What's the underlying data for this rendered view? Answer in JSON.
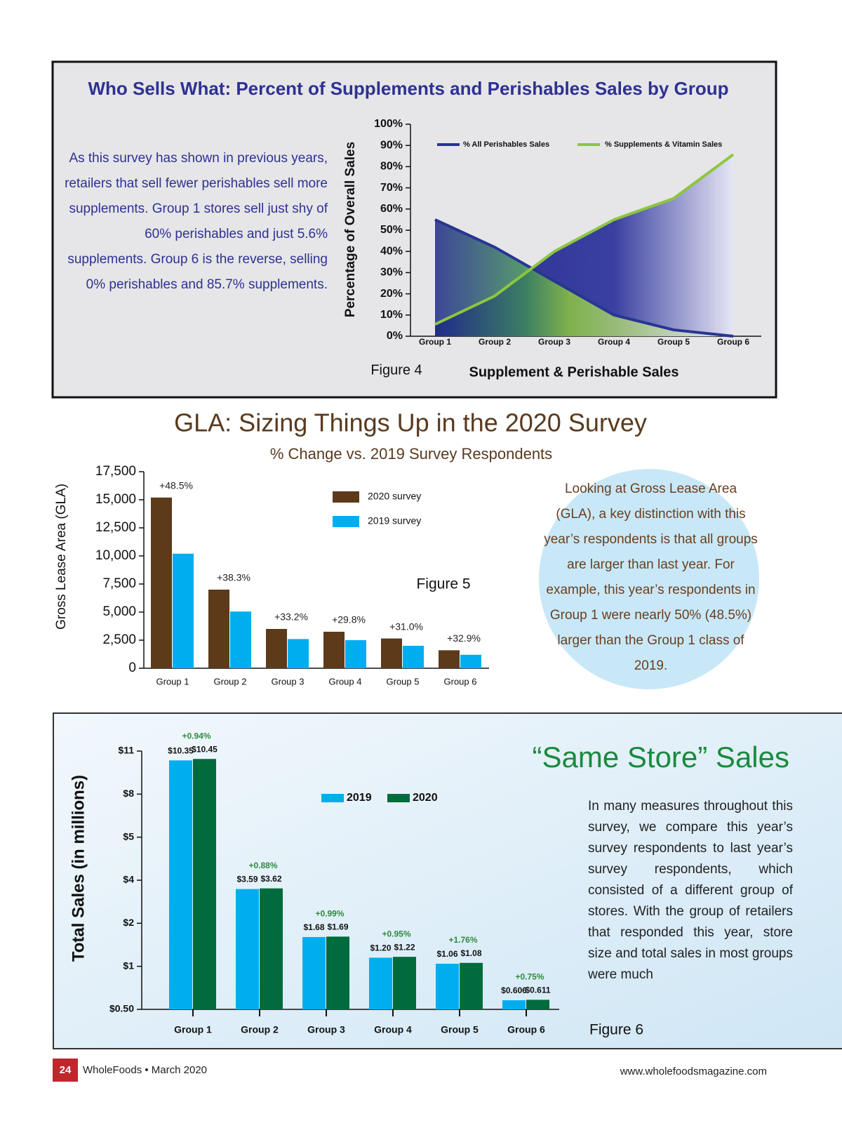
{
  "chart_data": [
    {
      "type": "area",
      "title": "Who Sells What: Percent of Supplements and Perishables Sales by Group",
      "note": "As this survey has shown in previous years, retailers that sell fewer perishables sell more supplements. Group 1 stores sell just shy of 60% perishables and just 5.6% supplements. Group 6 is the reverse, selling 0% perishables and 85.7% supplements.",
      "figure": "Figure 4",
      "xlabel": "Supplement & Perishable Sales",
      "ylabel": "Percentage of Overall Sales",
      "categories": [
        "Group 1",
        "Group 2",
        "Group 3",
        "Group 4",
        "Group 5",
        "Group 6"
      ],
      "series": [
        {
          "name": "% All Perishables Sales",
          "color": "#283593",
          "values": [
            55,
            42,
            26,
            10,
            3,
            0
          ]
        },
        {
          "name": "% Supplements & Vitamin Sales",
          "color": "#8dc63f",
          "values": [
            5.6,
            19,
            40,
            55,
            65,
            85.7
          ]
        }
      ],
      "ylim": [
        0,
        100
      ],
      "yticks": [
        {
          "value": 0,
          "label": "0%"
        },
        {
          "value": 10,
          "label": "10%"
        },
        {
          "value": 20,
          "label": "20%"
        },
        {
          "value": 30,
          "label": "30%"
        },
        {
          "value": 40,
          "label": "40%"
        },
        {
          "value": 50,
          "label": "50%"
        },
        {
          "value": 60,
          "label": "60%"
        },
        {
          "value": 70,
          "label": "70%"
        },
        {
          "value": 80,
          "label": "80%"
        },
        {
          "value": 90,
          "label": "90%"
        },
        {
          "value": 100,
          "label": "100%"
        }
      ]
    },
    {
      "type": "bar",
      "title": "GLA: Sizing Things Up in the 2020 Survey",
      "subtitle": "% Change vs. 2019 Survey Respondents",
      "note": "Looking at Gross Lease Area (GLA), a key distinction with this year’s respondents is that all groups are larger than last year. For example, this year’s respondents in Group 1 were nearly 50% (48.5%) larger than the Group 1 class of 2019.",
      "figure": "Figure 5",
      "ylabel": "Gross Lease Area (GLA)",
      "categories": [
        "Group 1",
        "Group 2",
        "Group 3",
        "Group 4",
        "Group 5",
        "Group 6"
      ],
      "series": [
        {
          "name": "2020 survey",
          "color": "#5c3a1a",
          "values": [
            15200,
            7000,
            3500,
            3250,
            2650,
            1600
          ]
        },
        {
          "name": "2019 survey",
          "color": "#00aeef",
          "values": [
            10200,
            5050,
            2600,
            2500,
            2000,
            1200
          ]
        }
      ],
      "annotations": [
        "+48.5%",
        "+38.3%",
        "+33.2%",
        "+29.8%",
        "+31.0%",
        "+32.9%"
      ],
      "ylim": [
        0,
        17500
      ],
      "yticks": [
        0,
        {
          "value": 2500,
          "label": "2,500"
        },
        {
          "value": 5000,
          "label": "5,000"
        },
        {
          "value": 7500,
          "label": "7,500"
        },
        {
          "value": 10000,
          "label": "10,000"
        },
        {
          "value": 12500,
          "label": "12,500"
        },
        {
          "value": 15000,
          "label": "15,000"
        },
        {
          "value": 17500,
          "label": "17,500"
        }
      ]
    },
    {
      "type": "bar",
      "title": "“Same Store” Sales",
      "note": "In many measures throughout this survey, we compare this year’s survey respondents to last year’s survey respondents, which consisted of a different group of stores. With the group of retailers that responded this year, store size and total sales in most groups were much",
      "figure": "Figure 6",
      "ylabel": "Total Sales (in millions)",
      "categories": [
        "Group 1",
        "Group 2",
        "Group 3",
        "Group 4",
        "Group 5",
        "Group 6"
      ],
      "series": [
        {
          "name": "2019",
          "color": "#00aeef",
          "values": [
            10.35,
            3.59,
            1.68,
            1.2,
            1.06,
            0.606
          ],
          "value_labels": [
            "$10.35",
            "$3.59",
            "$1.68",
            "$1.20",
            "$1.06",
            "$0.606"
          ]
        },
        {
          "name": "2020",
          "color": "#006b3c",
          "values": [
            10.45,
            3.62,
            1.69,
            1.22,
            1.08,
            0.611
          ],
          "value_labels": [
            "$10.45",
            "$3.62",
            "$1.69",
            "$1.22",
            "$1.08",
            "$0.611"
          ]
        }
      ],
      "annotations": [
        "+0.94%",
        "+0.88%",
        "+0.99%",
        "+0.95%",
        "+1.76%",
        "+0.75%"
      ],
      "ylim": [
        0.5,
        11
      ],
      "yscale": "tick-interpolated",
      "yticks": [
        {
          "value": 0.5,
          "label": "$0.50"
        },
        {
          "value": 1,
          "label": "$1"
        },
        {
          "value": 2,
          "label": "$2"
        },
        {
          "value": 4,
          "label": "$4"
        },
        {
          "value": 5,
          "label": "$5"
        },
        {
          "value": 8,
          "label": "$8"
        },
        {
          "value": 11,
          "label": "$11"
        }
      ]
    }
  ],
  "footer": {
    "page": "24",
    "publication": "WholeFoods • March 2020",
    "url": "www.wholefoodsmagazine.com"
  }
}
